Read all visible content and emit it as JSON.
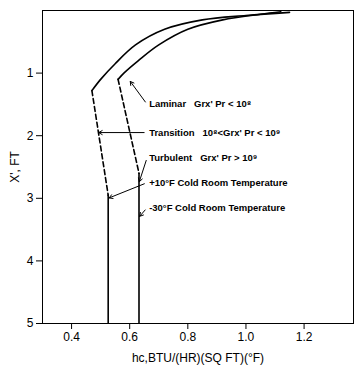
{
  "chart_data": {
    "type": "line",
    "x_label": "hc,BTU/(HR)(SQ FT)(°F)",
    "y_label": "X', FT",
    "xlim": [
      0.3,
      1.37
    ],
    "xticks": [
      0.4,
      0.6,
      0.8,
      {
        "value": 1,
        "label": "1.0"
      },
      1.2
    ],
    "ylim": [
      5,
      0
    ],
    "yticks": [
      1,
      2,
      3,
      4,
      5
    ],
    "grid": false,
    "series": [
      {
        "color": "#000000",
        "segments": [
          {
            "line_style": "solid",
            "x": [
              1.15,
              1.0,
              0.85,
              0.72,
              0.62,
              0.55,
              0.5,
              0.47
            ],
            "y": [
              0.03,
              0.08,
              0.15,
              0.3,
              0.55,
              0.85,
              1.1,
              1.28
            ]
          },
          {
            "line_style": "dashed",
            "x": [
              0.47,
              0.526
            ],
            "y": [
              1.28,
              2.95
            ]
          },
          {
            "line_style": "solid",
            "x": [
              0.526,
              0.526
            ],
            "y": [
              2.95,
              5
            ]
          }
        ]
      },
      {
        "color": "#000000",
        "segments": [
          {
            "line_style": "solid",
            "x": [
              1.12,
              1.05,
              0.92,
              0.8,
              0.7,
              0.63,
              0.58,
              0.56
            ],
            "y": [
              0.02,
              0.06,
              0.15,
              0.3,
              0.55,
              0.8,
              1.0,
              1.1
            ]
          },
          {
            "line_style": "dashed",
            "x": [
              0.56,
              0.632
            ],
            "y": [
              1.1,
              2.6
            ]
          },
          {
            "line_style": "solid",
            "x": [
              0.632,
              0.632
            ],
            "y": [
              2.6,
              5
            ]
          }
        ]
      }
    ],
    "annotations": [
      {
        "text": "Laminar   Grx' Pr < 10⁸",
        "x": 0.66,
        "y": 1.5,
        "arrow_to": [
          0.6,
          1.12
        ]
      },
      {
        "text": "Transition   10⁸<Grx' Pr < 10⁹",
        "x": 0.66,
        "y": 1.95,
        "arrow_to": [
          0.49,
          1.95
        ]
      },
      {
        "text": "Turbulent   Grx' Pr > 10⁹",
        "x": 0.66,
        "y": 2.35,
        "arrow_to": [
          0.632,
          2.75
        ]
      },
      {
        "text": "+10°F Cold Room Temperature",
        "x": 0.66,
        "y": 2.75,
        "arrow_to": [
          0.526,
          3.0
        ]
      },
      {
        "text": "-30°F Cold Room Temperature",
        "x": 0.66,
        "y": 3.15,
        "arrow_to": [
          0.632,
          3.3
        ]
      }
    ]
  }
}
